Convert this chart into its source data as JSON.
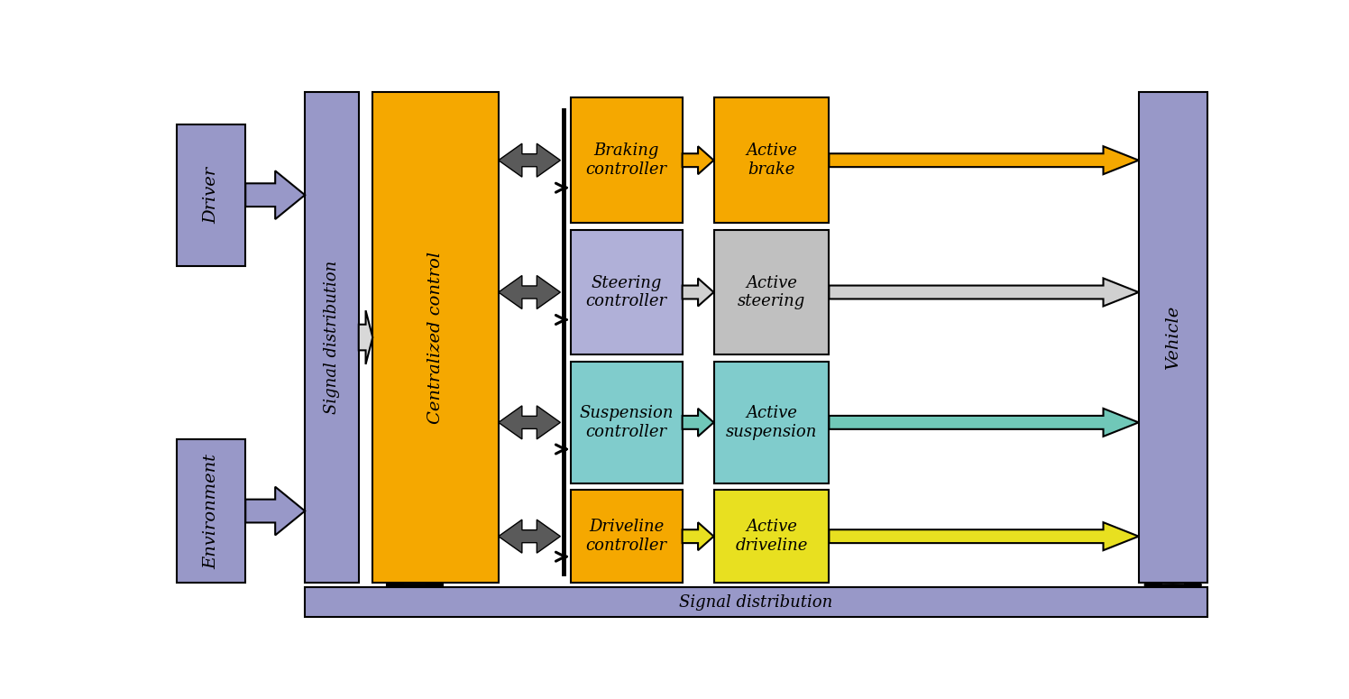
{
  "fig_width": 14.96,
  "fig_height": 7.75,
  "dpi": 100,
  "colors": {
    "purple": "#9898c8",
    "orange": "#f5a800",
    "light_purple_ctrl": "#b0b0d8",
    "light_blue_ctrl": "#80cccc",
    "light_gray_active": "#c0c0c0",
    "yellow_active": "#e8e020",
    "dark_gray_arrow": "#606060",
    "light_gray_arrow": "#d0d0d0",
    "white": "#ffffff",
    "black": "#000000",
    "teal_arrow": "#70c8b8"
  },
  "rows": {
    "braking": {
      "ctrl_color": "#f5a800",
      "ctrl_label": "Braking\ncontroller",
      "act_color": "#f5a800",
      "act_label": "Active\nbrake",
      "arrow_color": "#f5a800"
    },
    "steering": {
      "ctrl_color": "#b0b0d8",
      "ctrl_label": "Steering\ncontroller",
      "act_color": "#c0c0c0",
      "act_label": "Active\nsteering",
      "arrow_color": "#d0d0d0"
    },
    "suspension": {
      "ctrl_color": "#80cccc",
      "ctrl_label": "Suspension\ncontroller",
      "act_color": "#80cccc",
      "act_label": "Active\nsuspension",
      "arrow_color": "#70c8b8"
    },
    "driveline": {
      "ctrl_color": "#f5a800",
      "ctrl_label": "Driveline\ncontroller",
      "act_color": "#e8e020",
      "act_label": "Active\ndriveline",
      "arrow_color": "#e8e020"
    }
  }
}
